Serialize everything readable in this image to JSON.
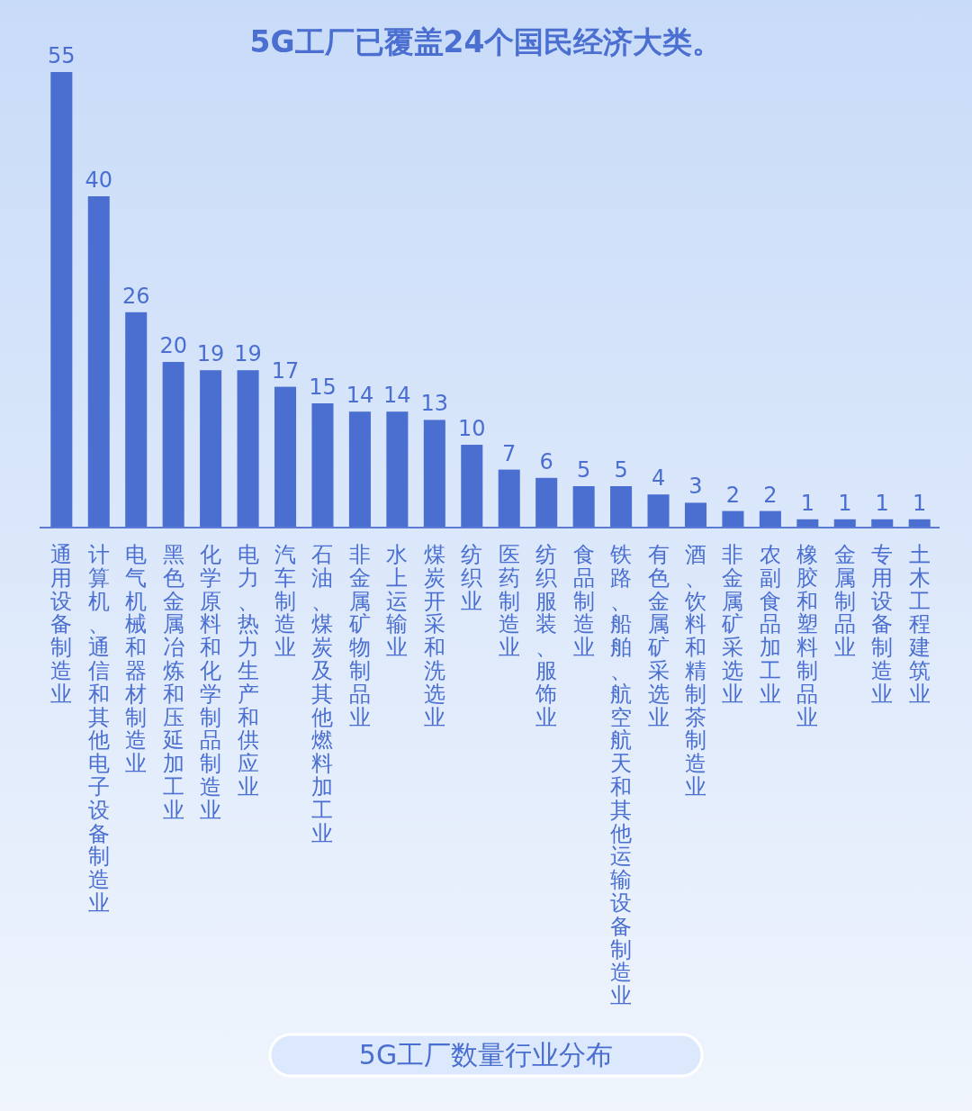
{
  "chart_data": {
    "type": "bar",
    "title": "5G工厂已覆盖24个国民经济大类。",
    "annotations": [
      "5G工厂数量行业分布"
    ],
    "categories": [
      "通用设备制造业",
      "计算机、通信和其他电子设备制造业",
      "电气机械和器材制造业",
      "黑色金属冶炼和压延加工业",
      "化学原料和化学制品制造业",
      "电力、热力生产和供应业",
      "汽车制造业",
      "石油、煤炭及其他燃料加工业",
      "非金属矿物制品业",
      "水上运输业",
      "煤炭开采和洗选业",
      "纺织业",
      "医药制造业",
      "纺织服装、服饰业",
      "食品制造业",
      "铁路、船舶、航空航天和其他运输设备制造业",
      "有色金属矿采选业",
      "酒、饮料和精制茶制造业",
      "非金属矿采选业",
      "农副食品加工业",
      "橡胶和塑料制品业",
      "金属制品业",
      "专用设备制造业",
      "土木工程建筑业"
    ],
    "values": [
      55,
      40,
      26,
      20,
      19,
      19,
      17,
      15,
      14,
      14,
      13,
      10,
      7,
      6,
      5,
      5,
      4,
      3,
      2,
      2,
      1,
      1,
      1,
      1
    ],
    "color": "#4a6fd1",
    "data_labels": true
  }
}
